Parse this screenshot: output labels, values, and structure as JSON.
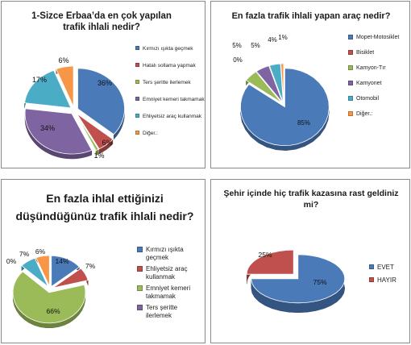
{
  "chart_data": [
    {
      "type": "pie",
      "title": "1-Sizce Erbaa’da en çok yapılan trafik ihlali nedir?",
      "slices": [
        {
          "label": "Kırmızı ışıkta geçmek",
          "value": 36,
          "text": "36%",
          "color": "#4a7ab8"
        },
        {
          "label": "Hatalı sollama yapmak",
          "value": 6,
          "text": "6%",
          "color": "#c0504d"
        },
        {
          "label": "Ters şeritte ilerlemek",
          "value": 1,
          "text": "1%",
          "color": "#9bbb59"
        },
        {
          "label": "Emniyet kemeri takmamak",
          "value": 34,
          "text": "34%",
          "color": "#7f64a2"
        },
        {
          "label": "Ehliyetsiz araç kullanmak",
          "value": 17,
          "text": "17%",
          "color": "#4bacc6"
        },
        {
          "label": "Diğer.:",
          "value": 6,
          "text": "6%",
          "color": "#f79646"
        }
      ]
    },
    {
      "type": "pie",
      "title": "En fazla trafik ihlali yapan araç nedir?",
      "slices": [
        {
          "label": "Mopet-Motosiklet",
          "value": 85,
          "text": "85%",
          "color": "#4a7ab8"
        },
        {
          "label": "Bisiklet",
          "value": 0,
          "text": "0%",
          "color": "#c0504d"
        },
        {
          "label": "Kamyon-Tır",
          "value": 5,
          "text": "5%",
          "color": "#9bbb59"
        },
        {
          "label": "Kamyonet",
          "value": 5,
          "text": "5%",
          "color": "#7f64a2"
        },
        {
          "label": "Otomobil",
          "value": 4,
          "text": "4%",
          "color": "#4bacc6"
        },
        {
          "label": "Diğer.:",
          "value": 1,
          "text": "1%",
          "color": "#f79646"
        }
      ]
    },
    {
      "type": "pie",
      "title": "En fazla ihlal ettiğinizi düşündüğünüz trafik ihlali nedir?",
      "slices": [
        {
          "label": "Kırmızı ışıkta geçmek",
          "value": 14,
          "text": "14%",
          "color": "#4a7ab8"
        },
        {
          "label": "Ehliyetsiz araç kullanmak",
          "value": 7,
          "text": "7%",
          "color": "#c0504d"
        },
        {
          "label": "Emniyet kemeri takmamak",
          "value": 66,
          "text": "66%",
          "color": "#9bbb59"
        },
        {
          "label": "Ters şeritte ilerlemek",
          "value": 0,
          "text": "0%",
          "color": "#7f64a2"
        },
        {
          "label": "",
          "value": 7,
          "text": "7%",
          "color": "#4bacc6"
        },
        {
          "label": "",
          "value": 6,
          "text": "6%",
          "color": "#f79646"
        }
      ]
    },
    {
      "type": "pie",
      "title": "Şehir içinde hiç trafik kazasına rast geldiniz mi?",
      "slices": [
        {
          "label": "EVET",
          "value": 75,
          "text": "75%",
          "color": "#4a7ab8"
        },
        {
          "label": "HAYIR",
          "value": 25,
          "text": "25%",
          "color": "#c0504d"
        }
      ]
    }
  ]
}
